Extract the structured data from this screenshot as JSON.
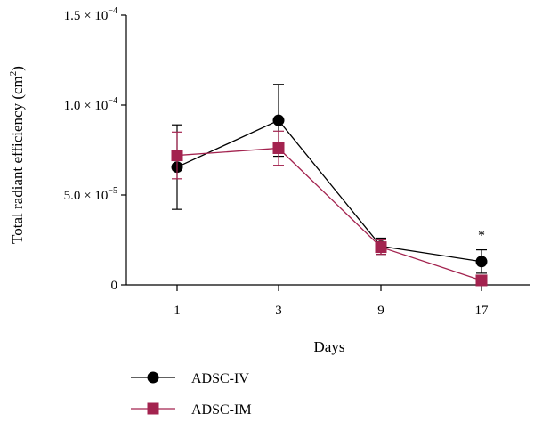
{
  "chart_data": {
    "type": "line",
    "title": "",
    "xlabel": "Days",
    "ylabel_main": "Total radiant efficiency (cm",
    "ylabel_sup": "2",
    "ylabel_end": ")",
    "categories": [
      "1",
      "3",
      "9",
      "17"
    ],
    "ylim": [
      0,
      0.00015
    ],
    "y_ticks": [
      {
        "value": 0,
        "mantissa": "0",
        "exponent": ""
      },
      {
        "value": 5e-05,
        "mantissa": "5.0 × 10",
        "exponent": "−5"
      },
      {
        "value": 0.0001,
        "mantissa": "1.0 × 10",
        "exponent": "−4"
      },
      {
        "value": 0.00015,
        "mantissa": "1.5 × 10",
        "exponent": "−4"
      }
    ],
    "series": [
      {
        "name": "ADSC-IV",
        "color": "#000000",
        "marker": "circle",
        "values": [
          6.55e-05,
          9.15e-05,
          2.15e-05,
          1.3e-05
        ],
        "errors": [
          2.35e-05,
          2e-05,
          4.5e-06,
          6.5e-06
        ]
      },
      {
        "name": "ADSC-IM",
        "color": "#a3234f",
        "marker": "square",
        "values": [
          7.2e-05,
          7.6e-05,
          2.1e-05,
          2.5e-06
        ],
        "errors": [
          1.3e-05,
          9.5e-06,
          4e-06,
          2.5e-06
        ]
      }
    ],
    "annotations": [
      {
        "text": "*",
        "category": "17",
        "value": 2.35e-05
      }
    ],
    "grid": false,
    "legend": "bottom-left"
  }
}
